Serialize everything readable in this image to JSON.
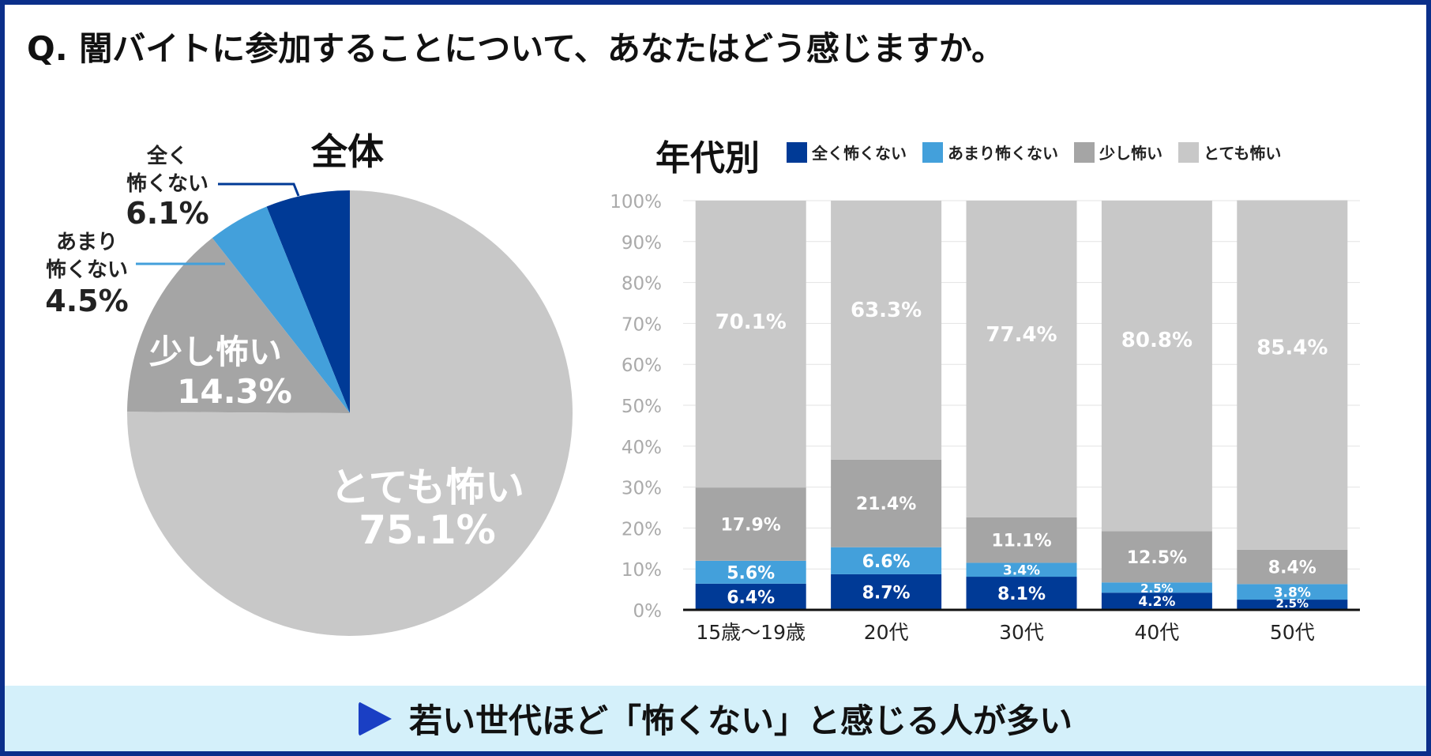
{
  "question": "Q. 闇バイトに参加することについて、あなたはどう感じますか。",
  "colors": {
    "not_scared": "#003a96",
    "not_very_scared": "#43a0db",
    "little_scared": "#a5a5a5",
    "very_scared": "#c8c8c8",
    "frame": "#0b2f8a",
    "banner_bg": "#d4f0fa",
    "banner_icon": "#1a3fc4"
  },
  "legend": [
    {
      "label": "全く怖くない",
      "color": "#003a96"
    },
    {
      "label": "あまり怖くない",
      "color": "#43a0db"
    },
    {
      "label": "少し怖い",
      "color": "#a5a5a5"
    },
    {
      "label": "とても怖い",
      "color": "#c8c8c8"
    }
  ],
  "banner": {
    "icon": "play-triangle-icon",
    "text": "若い世代ほど「怖くない」と感じる人が多い"
  },
  "chart_data": [
    {
      "type": "pie",
      "title": "全体",
      "slices": [
        {
          "label": "全く怖くない",
          "label_lines": [
            "全く",
            "怖くない"
          ],
          "value": 6.1,
          "display": "6.1%",
          "color": "#003a96"
        },
        {
          "label": "あまり怖くない",
          "label_lines": [
            "あまり",
            "怖くない"
          ],
          "value": 4.5,
          "display": "4.5%",
          "color": "#43a0db"
        },
        {
          "label": "少し怖い",
          "label_lines": [
            "少し怖い"
          ],
          "value": 14.3,
          "display": "14.3%",
          "color": "#a5a5a5"
        },
        {
          "label": "とても怖い",
          "label_lines": [
            "とても怖い"
          ],
          "value": 75.1,
          "display": "75.1%",
          "color": "#c8c8c8"
        }
      ]
    },
    {
      "type": "bar",
      "stacked": true,
      "title": "年代別",
      "categories": [
        "15歳～19歳",
        "20代",
        "30代",
        "40代",
        "50代"
      ],
      "yticks": [
        "0%",
        "10%",
        "20%",
        "30%",
        "40%",
        "50%",
        "60%",
        "70%",
        "80%",
        "90%",
        "100%"
      ],
      "ylim": [
        0,
        100
      ],
      "series": [
        {
          "name": "全く怖くない",
          "color": "#003a96",
          "values": [
            6.4,
            8.7,
            8.1,
            4.2,
            2.5
          ],
          "labels": [
            "6.4%",
            "8.7%",
            "8.1%",
            "4.2%",
            "2.5%"
          ]
        },
        {
          "name": "あまり怖くない",
          "color": "#43a0db",
          "values": [
            5.6,
            6.6,
            3.4,
            2.5,
            3.8
          ],
          "labels": [
            "5.6%",
            "6.6%",
            "3.4%",
            "2.5%",
            "3.8%"
          ]
        },
        {
          "name": "少し怖い",
          "color": "#a5a5a5",
          "values": [
            17.9,
            21.4,
            11.1,
            12.5,
            8.4
          ],
          "labels": [
            "17.9%",
            "21.4%",
            "11.1%",
            "12.5%",
            "8.4%"
          ]
        },
        {
          "name": "とても怖い",
          "color": "#c8c8c8",
          "values": [
            70.1,
            63.3,
            77.4,
            80.8,
            85.4
          ],
          "labels": [
            "70.1%",
            "63.3%",
            "77.4%",
            "80.8%",
            "85.4%"
          ]
        }
      ]
    }
  ]
}
